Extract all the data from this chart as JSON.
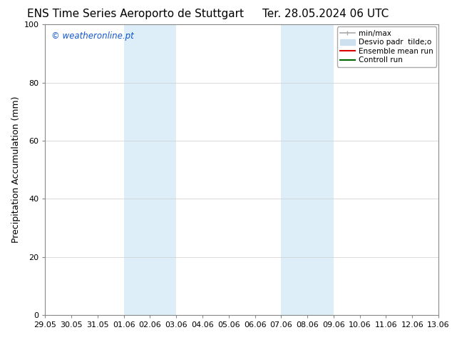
{
  "title_left": "ENS Time Series Aeroporto de Stuttgart",
  "title_right": "Ter. 28.05.2024 06 UTC",
  "ylabel": "Precipitation Accumulation (mm)",
  "ylim": [
    0,
    100
  ],
  "yticks": [
    0,
    20,
    40,
    60,
    80,
    100
  ],
  "xlabel_ticks": [
    "29.05",
    "30.05",
    "31.05",
    "01.06",
    "02.06",
    "03.06",
    "04.06",
    "05.06",
    "06.06",
    "07.06",
    "08.06",
    "09.06",
    "10.06",
    "11.06",
    "12.06",
    "13.06"
  ],
  "xlim_start": 0,
  "xlim_end": 15,
  "shaded_regions": [
    {
      "x_start": 3,
      "x_end": 5,
      "color": "#ddeef8"
    },
    {
      "x_start": 9,
      "x_end": 11,
      "color": "#ddeef8"
    }
  ],
  "watermark_text": "© weatheronline.pt",
  "watermark_color": "#1155cc",
  "bg_color": "#ffffff",
  "plot_bg_color": "#ffffff",
  "spine_color": "#888888",
  "grid_color": "#cccccc",
  "legend_items": [
    {
      "label": "min/max",
      "color": "#aaaaaa",
      "lw": 1.2
    },
    {
      "label": "Desvio padr  tilde;o",
      "color": "#cce0f0",
      "lw": 8
    },
    {
      "label": "Ensemble mean run",
      "color": "#dd0000",
      "lw": 1.5
    },
    {
      "label": "Controll run",
      "color": "#006600",
      "lw": 1.5
    }
  ],
  "title_fontsize": 11,
  "label_fontsize": 9,
  "tick_fontsize": 8,
  "legend_fontsize": 7.5
}
